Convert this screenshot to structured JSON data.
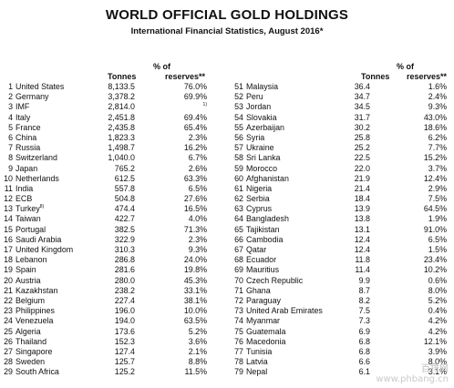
{
  "title": "WORLD OFFICIAL GOLD HOLDINGS",
  "subtitle": "International Financial Statistics, August 2016*",
  "headers": {
    "tonnes": "Tonnes",
    "pct_line1": "% of",
    "pct_line2": "reserves**"
  },
  "left": [
    {
      "idx": "1",
      "name": "United States",
      "tonnes": "8,133.5",
      "pct": "76.0%"
    },
    {
      "idx": "2",
      "name": "Germany",
      "tonnes": "3,378.2",
      "pct": "69.9%"
    },
    {
      "idx": "3",
      "name": "IMF",
      "tonnes": "2,814.0",
      "pct": "",
      "sup": "1)"
    },
    {
      "idx": "4",
      "name": "Italy",
      "tonnes": "2,451.8",
      "pct": "69.4%"
    },
    {
      "idx": "5",
      "name": "France",
      "tonnes": "2,435.8",
      "pct": "65.4%"
    },
    {
      "idx": "6",
      "name": "China",
      "tonnes": "1,823.3",
      "pct": "2.3%"
    },
    {
      "idx": "7",
      "name": "Russia",
      "tonnes": "1,498.7",
      "pct": "16.2%"
    },
    {
      "idx": "8",
      "name": "Switzerland",
      "tonnes": "1,040.0",
      "pct": "6.7%"
    },
    {
      "idx": "9",
      "name": "Japan",
      "tonnes": "765.2",
      "pct": "2.6%"
    },
    {
      "idx": "10",
      "name": "Netherlands",
      "tonnes": "612.5",
      "pct": "63.3%"
    },
    {
      "idx": "11",
      "name": "India",
      "tonnes": "557.8",
      "pct": "6.5%"
    },
    {
      "idx": "12",
      "name": "ECB",
      "tonnes": "504.8",
      "pct": "27.6%"
    },
    {
      "idx": "13",
      "name": "Turkey",
      "name_sup": "8)",
      "tonnes": "474.4",
      "pct": "16.5%"
    },
    {
      "idx": "14",
      "name": "Taiwan",
      "tonnes": "422.7",
      "pct": "4.0%"
    },
    {
      "idx": "15",
      "name": "Portugal",
      "tonnes": "382.5",
      "pct": "71.3%"
    },
    {
      "idx": "16",
      "name": "Saudi Arabia",
      "tonnes": "322.9",
      "pct": "2.3%"
    },
    {
      "idx": "17",
      "name": "United Kingdom",
      "tonnes": "310.3",
      "pct": "9.3%"
    },
    {
      "idx": "18",
      "name": "Lebanon",
      "tonnes": "286.8",
      "pct": "24.0%"
    },
    {
      "idx": "19",
      "name": "Spain",
      "tonnes": "281.6",
      "pct": "19.8%"
    },
    {
      "idx": "20",
      "name": "Austria",
      "tonnes": "280.0",
      "pct": "45.3%"
    },
    {
      "idx": "21",
      "name": "Kazakhstan",
      "tonnes": "238.2",
      "pct": "33.1%"
    },
    {
      "idx": "22",
      "name": "Belgium",
      "tonnes": "227.4",
      "pct": "38.1%"
    },
    {
      "idx": "23",
      "name": "Philippines",
      "tonnes": "196.0",
      "pct": "10.0%"
    },
    {
      "idx": "24",
      "name": "Venezuela",
      "tonnes": "194.0",
      "pct": "63.5%"
    },
    {
      "idx": "25",
      "name": "Algeria",
      "tonnes": "173.6",
      "pct": "5.2%"
    },
    {
      "idx": "26",
      "name": "Thailand",
      "tonnes": "152.3",
      "pct": "3.6%"
    },
    {
      "idx": "27",
      "name": "Singapore",
      "tonnes": "127.4",
      "pct": "2.1%"
    },
    {
      "idx": "28",
      "name": "Sweden",
      "tonnes": "125.7",
      "pct": "8.8%"
    },
    {
      "idx": "29",
      "name": "South Africa",
      "tonnes": "125.2",
      "pct": "11.5%"
    }
  ],
  "right": [
    {
      "idx": "51",
      "name": "Malaysia",
      "tonnes": "36.4",
      "pct": "1.6%"
    },
    {
      "idx": "52",
      "name": "Peru",
      "tonnes": "34.7",
      "pct": "2.4%"
    },
    {
      "idx": "53",
      "name": "Jordan",
      "tonnes": "34.5",
      "pct": "9.3%"
    },
    {
      "idx": "54",
      "name": "Slovakia",
      "tonnes": "31.7",
      "pct": "43.0%"
    },
    {
      "idx": "55",
      "name": "Azerbaijan",
      "tonnes": "30.2",
      "pct": "18.6%"
    },
    {
      "idx": "56",
      "name": "Syria",
      "tonnes": "25.8",
      "pct": "6.2%"
    },
    {
      "idx": "57",
      "name": "Ukraine",
      "tonnes": "25.2",
      "pct": "7.7%"
    },
    {
      "idx": "58",
      "name": "Sri Lanka",
      "tonnes": "22.5",
      "pct": "15.2%"
    },
    {
      "idx": "59",
      "name": "Morocco",
      "tonnes": "22.0",
      "pct": "3.7%"
    },
    {
      "idx": "60",
      "name": "Afghanistan",
      "tonnes": "21.9",
      "pct": "12.4%"
    },
    {
      "idx": "61",
      "name": "Nigeria",
      "tonnes": "21.4",
      "pct": "2.9%"
    },
    {
      "idx": "62",
      "name": "Serbia",
      "tonnes": "18.4",
      "pct": "7.5%"
    },
    {
      "idx": "63",
      "name": "Cyprus",
      "tonnes": "13.9",
      "pct": "64.5%"
    },
    {
      "idx": "64",
      "name": "Bangladesh",
      "tonnes": "13.8",
      "pct": "1.9%"
    },
    {
      "idx": "65",
      "name": "Tajikistan",
      "tonnes": "13.1",
      "pct": "91.0%"
    },
    {
      "idx": "66",
      "name": "Cambodia",
      "tonnes": "12.4",
      "pct": "6.5%"
    },
    {
      "idx": "67",
      "name": "Qatar",
      "tonnes": "12.4",
      "pct": "1.5%"
    },
    {
      "idx": "68",
      "name": "Ecuador",
      "tonnes": "11.8",
      "pct": "23.4%"
    },
    {
      "idx": "69",
      "name": "Mauritius",
      "tonnes": "11.4",
      "pct": "10.2%"
    },
    {
      "idx": "70",
      "name": "Czech Republic",
      "tonnes": "9.9",
      "pct": "0.6%"
    },
    {
      "idx": "71",
      "name": "Ghana",
      "tonnes": "8.7",
      "pct": "8.0%"
    },
    {
      "idx": "72",
      "name": "Paraguay",
      "tonnes": "8.2",
      "pct": "5.2%"
    },
    {
      "idx": "73",
      "name": "United Arab Emirates",
      "tonnes": "7.5",
      "pct": "0.4%"
    },
    {
      "idx": "74",
      "name": "Myanmar",
      "tonnes": "7.3",
      "pct": "4.2%"
    },
    {
      "idx": "75",
      "name": "Guatemala",
      "tonnes": "6.9",
      "pct": "4.2%"
    },
    {
      "idx": "76",
      "name": "Macedonia",
      "tonnes": "6.8",
      "pct": "12.1%"
    },
    {
      "idx": "77",
      "name": "Tunisia",
      "tonnes": "6.8",
      "pct": "3.9%"
    },
    {
      "idx": "78",
      "name": "Latvia",
      "tonnes": "6.6",
      "pct": "8.0%"
    },
    {
      "idx": "79",
      "name": "Nepal",
      "tonnes": "6.1",
      "pct": "3.1%"
    }
  ],
  "watermark": {
    "line1": "百排网",
    "line2": "www.phbang.cn"
  }
}
